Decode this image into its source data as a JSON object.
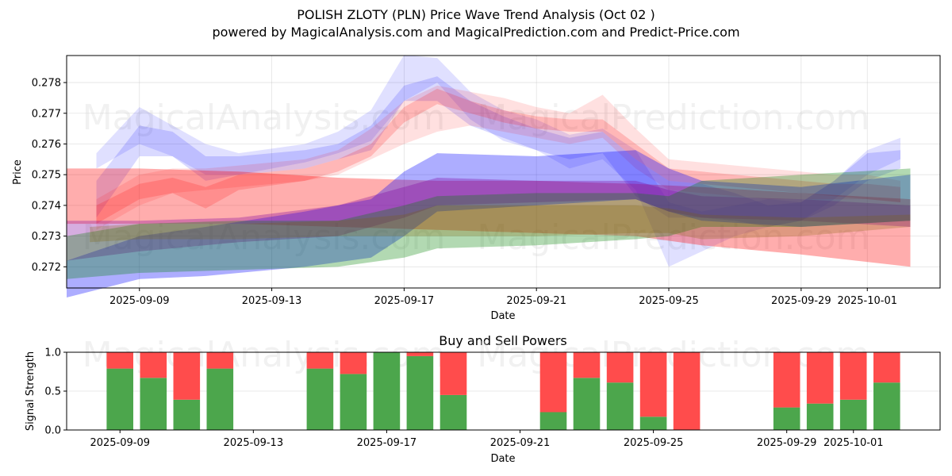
{
  "header": {
    "title": "POLISH ZLOTY (PLN) Price Wave Trend Analysis (Oct 02 )",
    "subtitle": "powered by MagicalAnalysis.com and MagicalPrediction.com and Predict-Price.com"
  },
  "watermarks": [
    "MagicalAnalysis.com",
    "MagicalPrediction.com"
  ],
  "chart_data": [
    {
      "type": "area",
      "title": "",
      "xlabel": "Date",
      "ylabel": "Price",
      "x_origin_date": "2025-09-06",
      "xlim_days": [
        0.8,
        27.2
      ],
      "ylim": [
        0.27131,
        0.27888
      ],
      "grid": true,
      "xticks": [
        {
          "day": 3,
          "label": "2025-09-09"
        },
        {
          "day": 7,
          "label": "2025-09-13"
        },
        {
          "day": 11,
          "label": "2025-09-17"
        },
        {
          "day": 15,
          "label": "2025-09-21"
        },
        {
          "day": 19,
          "label": "2025-09-25"
        },
        {
          "day": 23,
          "label": "2025-09-29"
        },
        {
          "day": 25,
          "label": "2025-10-01"
        }
      ],
      "yticks": [
        {
          "value": 0.272,
          "label": "0.272"
        },
        {
          "value": 0.273,
          "label": "0.273"
        },
        {
          "value": 0.274,
          "label": "0.274"
        },
        {
          "value": 0.275,
          "label": "0.275"
        },
        {
          "value": 0.276,
          "label": "0.276"
        },
        {
          "value": 0.277,
          "label": "0.277"
        },
        {
          "value": 0.278,
          "label": "0.278"
        }
      ],
      "series": [
        {
          "name": "blue-wave-1",
          "color": "#0000ff",
          "opacity": 0.12,
          "x": [
            1.7,
            3,
            4,
            5,
            6,
            8,
            9,
            10,
            11,
            12,
            13,
            14,
            15,
            16,
            17,
            18,
            19,
            20,
            21,
            22,
            23,
            24,
            25,
            26
          ],
          "upper": [
            0.2757,
            0.2772,
            0.2766,
            0.276,
            0.2757,
            0.276,
            0.2764,
            0.2771,
            0.2789,
            0.2788,
            0.2777,
            0.2771,
            0.2768,
            0.2763,
            0.2765,
            0.2758,
            0.2741,
            0.2738,
            0.274,
            0.2742,
            0.2741,
            0.2748,
            0.2758,
            0.2762
          ],
          "lower": [
            0.2752,
            0.276,
            0.2756,
            0.275,
            0.275,
            0.2754,
            0.2757,
            0.2761,
            0.2774,
            0.278,
            0.2768,
            0.2761,
            0.2758,
            0.2752,
            0.2755,
            0.2745,
            0.272,
            0.2725,
            0.273,
            0.2733,
            0.2735,
            0.2742,
            0.275,
            0.2755
          ]
        },
        {
          "name": "blue-wave-2",
          "color": "#0000ff",
          "opacity": 0.15,
          "x": [
            1.7,
            3,
            4,
            5,
            6,
            8,
            9,
            10,
            11,
            12,
            13,
            14,
            15,
            16,
            17,
            18,
            19,
            20,
            21,
            22,
            23,
            24,
            25,
            26
          ],
          "upper": [
            0.2748,
            0.2766,
            0.2764,
            0.2756,
            0.2756,
            0.2758,
            0.276,
            0.2766,
            0.2779,
            0.2782,
            0.2774,
            0.2769,
            0.2765,
            0.2762,
            0.2764,
            0.2755,
            0.2748,
            0.2747,
            0.2744,
            0.274,
            0.2741,
            0.2748,
            0.2757,
            0.2758
          ],
          "lower": [
            0.2736,
            0.2756,
            0.2756,
            0.2748,
            0.275,
            0.2752,
            0.2755,
            0.2758,
            0.2774,
            0.2774,
            0.2766,
            0.2762,
            0.2758,
            0.2755,
            0.2757,
            0.2743,
            0.2736,
            0.2736,
            0.2735,
            0.2733,
            0.2735,
            0.274,
            0.2748,
            0.2752
          ]
        },
        {
          "name": "red-wave-1",
          "color": "#ff0000",
          "opacity": 0.12,
          "x": [
            1.7,
            3,
            4,
            5,
            6,
            8,
            9,
            10,
            11,
            12,
            13,
            14,
            15,
            16,
            17,
            18,
            19,
            20,
            21,
            22,
            23,
            24,
            25,
            26
          ],
          "upper": [
            0.2742,
            0.275,
            0.2752,
            0.2752,
            0.2753,
            0.2755,
            0.2758,
            0.2765,
            0.2774,
            0.2779,
            0.2777,
            0.2775,
            0.2772,
            0.277,
            0.2776,
            0.2765,
            0.2755,
            0.2754,
            0.2753,
            0.2752,
            0.2751,
            0.275,
            0.275,
            0.2748
          ],
          "lower": [
            0.2732,
            0.274,
            0.2744,
            0.2745,
            0.2746,
            0.2748,
            0.275,
            0.2755,
            0.276,
            0.2764,
            0.2766,
            0.2764,
            0.2762,
            0.276,
            0.2762,
            0.2752,
            0.2745,
            0.2744,
            0.2743,
            0.2742,
            0.2742,
            0.2742,
            0.2742,
            0.2741
          ]
        },
        {
          "name": "red-wave-2",
          "color": "#ff0000",
          "opacity": 0.18,
          "x": [
            1.7,
            3,
            4,
            5,
            6,
            8,
            9,
            10,
            11,
            12,
            13,
            14,
            15,
            16,
            17,
            18,
            19,
            20,
            21,
            22,
            23,
            24,
            25,
            26
          ],
          "upper": [
            0.274,
            0.2747,
            0.2749,
            0.2746,
            0.275,
            0.2752,
            0.2755,
            0.276,
            0.2772,
            0.2778,
            0.2774,
            0.2771,
            0.2769,
            0.2768,
            0.2768,
            0.276,
            0.2752,
            0.2751,
            0.275,
            0.2749,
            0.2748,
            0.2747,
            0.2747,
            0.2746
          ],
          "lower": [
            0.2734,
            0.2742,
            0.2744,
            0.2739,
            0.2745,
            0.2748,
            0.2751,
            0.2756,
            0.2767,
            0.2773,
            0.277,
            0.2767,
            0.2765,
            0.2764,
            0.2764,
            0.2755,
            0.2748,
            0.2747,
            0.2746,
            0.2745,
            0.2744,
            0.2743,
            0.2742,
            0.2741
          ]
        },
        {
          "name": "red-range",
          "color": "#ff0000",
          "opacity": 0.32,
          "x": [
            0.8,
            3,
            6,
            9,
            12,
            15,
            18,
            20,
            23,
            26.3
          ],
          "upper": [
            0.2752,
            0.2752,
            0.2751,
            0.2749,
            0.2748,
            0.2748,
            0.2747,
            0.2746,
            0.2744,
            0.2742
          ],
          "lower": [
            0.2734,
            0.2734,
            0.2734,
            0.2733,
            0.2732,
            0.2731,
            0.273,
            0.2727,
            0.2724,
            0.272
          ]
        },
        {
          "name": "blue-range",
          "color": "#0000ff",
          "opacity": 0.32,
          "x": [
            0.8,
            3,
            5,
            8,
            10,
            11,
            12,
            15,
            18,
            19,
            20,
            23,
            26.3
          ],
          "upper": [
            0.2722,
            0.273,
            0.2733,
            0.2738,
            0.2742,
            0.2751,
            0.2757,
            0.2756,
            0.2758,
            0.2752,
            0.2748,
            0.2746,
            0.275
          ],
          "lower": [
            0.271,
            0.2716,
            0.2717,
            0.272,
            0.2723,
            0.273,
            0.2738,
            0.274,
            0.2742,
            0.2738,
            0.2735,
            0.2733,
            0.2735
          ]
        },
        {
          "name": "purple-range",
          "color": "#8000a0",
          "opacity": 0.32,
          "x": [
            0.8,
            3,
            6,
            9,
            11,
            12,
            15,
            18,
            19,
            20,
            23,
            26.3
          ],
          "upper": [
            0.2735,
            0.2735,
            0.2736,
            0.274,
            0.2746,
            0.2749,
            0.2748,
            0.2748,
            0.2745,
            0.2743,
            0.2742,
            0.274
          ],
          "lower": [
            0.2722,
            0.2725,
            0.2728,
            0.273,
            0.2736,
            0.274,
            0.2741,
            0.2742,
            0.2738,
            0.2736,
            0.2735,
            0.2733
          ]
        },
        {
          "name": "green-range",
          "color": "#008000",
          "opacity": 0.3,
          "x": [
            0.8,
            3,
            6,
            9,
            11,
            12,
            15,
            18,
            19,
            20,
            23,
            26.3
          ],
          "upper": [
            0.273,
            0.2734,
            0.2735,
            0.2735,
            0.274,
            0.2743,
            0.2744,
            0.2744,
            0.2743,
            0.2748,
            0.275,
            0.2752
          ],
          "lower": [
            0.2716,
            0.2718,
            0.2719,
            0.272,
            0.2723,
            0.2726,
            0.2727,
            0.2729,
            0.273,
            0.2733,
            0.2733,
            0.2735
          ]
        },
        {
          "name": "olive-range",
          "color": "#806000",
          "opacity": 0.25,
          "x": [
            1.5,
            3,
            6,
            9,
            11,
            12,
            15,
            18,
            19,
            20,
            23,
            26.3
          ],
          "upper": [
            0.2733,
            0.2734,
            0.2734,
            0.2735,
            0.2737,
            0.274,
            0.274,
            0.274,
            0.2739,
            0.2737,
            0.2736,
            0.2737
          ],
          "lower": [
            0.2728,
            0.2729,
            0.2729,
            0.273,
            0.273,
            0.273,
            0.273,
            0.2731,
            0.2731,
            0.2729,
            0.273,
            0.2733
          ]
        }
      ]
    },
    {
      "type": "bar",
      "title": "Buy and Sell Powers",
      "xlabel": "Date",
      "ylabel": "Signal Strength",
      "ylim": [
        0,
        1
      ],
      "x_origin_date": "2025-09-06",
      "xlim_days": [
        1.4,
        27.6
      ],
      "grid": true,
      "xticks": [
        {
          "day": 3,
          "label": "2025-09-09"
        },
        {
          "day": 7,
          "label": "2025-09-13"
        },
        {
          "day": 11,
          "label": "2025-09-17"
        },
        {
          "day": 15,
          "label": "2025-09-21"
        },
        {
          "day": 19,
          "label": "2025-09-25"
        },
        {
          "day": 23,
          "label": "2025-09-29"
        },
        {
          "day": 25,
          "label": "2025-10-01"
        }
      ],
      "yticks": [
        {
          "value": 0.0,
          "label": "0.0"
        },
        {
          "value": 0.5,
          "label": "0.5"
        },
        {
          "value": 1.0,
          "label": "1.0"
        }
      ],
      "categories": [
        "2025-09-09",
        "2025-09-10",
        "2025-09-11",
        "2025-09-12",
        "2025-09-15",
        "2025-09-16",
        "2025-09-17",
        "2025-09-18",
        "2025-09-19",
        "2025-09-22",
        "2025-09-23",
        "2025-09-24",
        "2025-09-25",
        "2025-09-26",
        "2025-09-29",
        "2025-09-30",
        "2025-10-01",
        "2025-10-02"
      ],
      "days": [
        3,
        4,
        5,
        6,
        9,
        10,
        11,
        12,
        13,
        16,
        17,
        18,
        19,
        20,
        23,
        24,
        25,
        26
      ],
      "series": [
        {
          "name": "Buy",
          "color": "#4ca64c",
          "values": [
            0.79,
            0.67,
            0.39,
            0.79,
            0.79,
            0.72,
            1.0,
            0.95,
            0.45,
            0.23,
            0.67,
            0.61,
            0.17,
            0.0,
            0.29,
            0.34,
            0.39,
            0.61
          ]
        },
        {
          "name": "Sell",
          "color": "#ff4c4c",
          "values": [
            0.21,
            0.33,
            0.61,
            0.21,
            0.21,
            0.28,
            0.0,
            0.05,
            0.55,
            0.77,
            0.33,
            0.39,
            0.83,
            1.0,
            0.71,
            0.66,
            0.61,
            0.39
          ]
        }
      ]
    }
  ]
}
